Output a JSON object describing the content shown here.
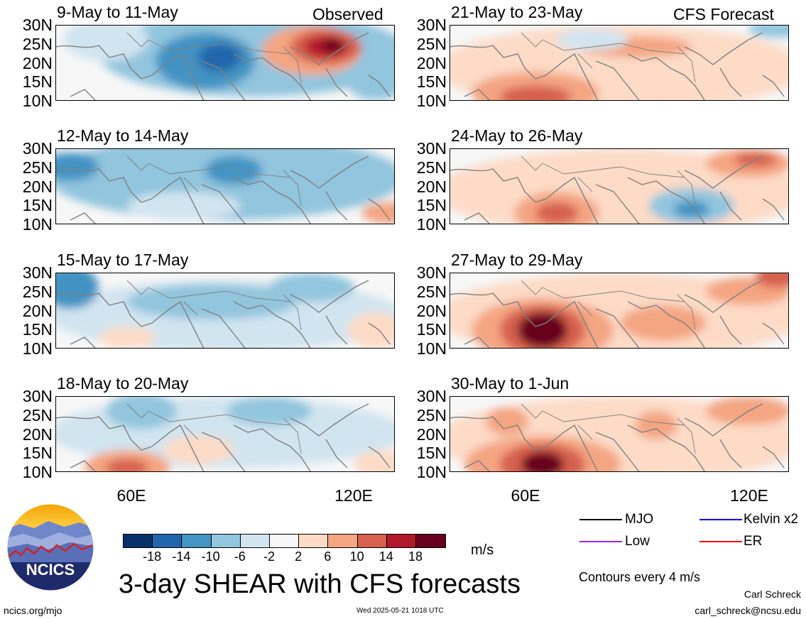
{
  "header": {
    "left_tag": "Observed",
    "right_tag": "CFS Forecast"
  },
  "colors": {
    "scale": [
      "#08306b",
      "#2166ac",
      "#4393c3",
      "#92c5de",
      "#d1e5f0",
      "#f7f7f7",
      "#fddbc7",
      "#f4a582",
      "#d6604d",
      "#b2182b",
      "#67001f"
    ],
    "coast": "#808080",
    "mjo": "#000000",
    "kelvin": "#0000ff",
    "low": "#a020f0",
    "er": "#ff0000"
  },
  "lat_labels": [
    "30N",
    "25N",
    "20N",
    "15N",
    "10N"
  ],
  "lon_labels": [
    "60E",
    "120E"
  ],
  "left_panels": [
    {
      "title": "9-May to 11-May",
      "pattern": "obs1"
    },
    {
      "title": "12-May to 14-May",
      "pattern": "obs2"
    },
    {
      "title": "15-May to 17-May",
      "pattern": "obs3"
    },
    {
      "title": "18-May to 20-May",
      "pattern": "obs4"
    }
  ],
  "right_panels": [
    {
      "title": "21-May to 23-May",
      "pattern": "fc1"
    },
    {
      "title": "24-May to 26-May",
      "pattern": "fc2"
    },
    {
      "title": "27-May to 29-May",
      "pattern": "fc3"
    },
    {
      "title": "30-May to 1-Jun",
      "pattern": "fc4"
    }
  ],
  "colorbar": {
    "ticks": [
      "-18",
      "-14",
      "-10",
      "-6",
      "-2",
      "2",
      "6",
      "10",
      "14",
      "18"
    ],
    "unit": "m/s"
  },
  "legend": {
    "items": [
      {
        "label": "MJO",
        "color_key": "mjo"
      },
      {
        "label": "Kelvin x2",
        "color_key": "kelvin"
      },
      {
        "label": "Low",
        "color_key": "low"
      },
      {
        "label": "ER",
        "color_key": "er"
      }
    ],
    "contours_note": "Contours every 4 m/s"
  },
  "footer": {
    "main_title": "3-day SHEAR with CFS forecasts",
    "logo_text": "NCICS",
    "url": "ncics.org/mjo",
    "timestamp": "Wed 2025-05-21 1018 UTC",
    "author": "Carl Schreck",
    "email": "carl_schreck@ncsu.edu"
  }
}
